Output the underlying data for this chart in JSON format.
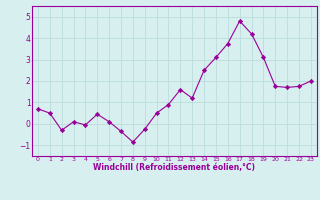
{
  "x": [
    0,
    1,
    2,
    3,
    4,
    5,
    6,
    7,
    8,
    9,
    10,
    11,
    12,
    13,
    14,
    15,
    16,
    17,
    18,
    19,
    20,
    21,
    22,
    23
  ],
  "y": [
    0.7,
    0.5,
    -0.3,
    0.1,
    -0.05,
    0.45,
    0.1,
    -0.35,
    -0.85,
    -0.25,
    0.5,
    0.9,
    1.6,
    1.2,
    2.5,
    3.1,
    3.75,
    4.8,
    4.2,
    3.1,
    1.75,
    1.7,
    1.75,
    2.0
  ],
  "line_color": "#990099",
  "marker": "D",
  "marker_size": 2.2,
  "bg_color": "#d8efef",
  "grid_color": "#bbdddd",
  "xlabel": "Windchill (Refroidissement éolien,°C)",
  "xlabel_color": "#990099",
  "tick_color": "#990099",
  "spine_color": "#990099",
  "ylim": [
    -1.5,
    5.5
  ],
  "xlim": [
    -0.5,
    23.5
  ],
  "yticks": [
    -1,
    0,
    1,
    2,
    3,
    4,
    5
  ],
  "xticks": [
    0,
    1,
    2,
    3,
    4,
    5,
    6,
    7,
    8,
    9,
    10,
    11,
    12,
    13,
    14,
    15,
    16,
    17,
    18,
    19,
    20,
    21,
    22,
    23
  ]
}
